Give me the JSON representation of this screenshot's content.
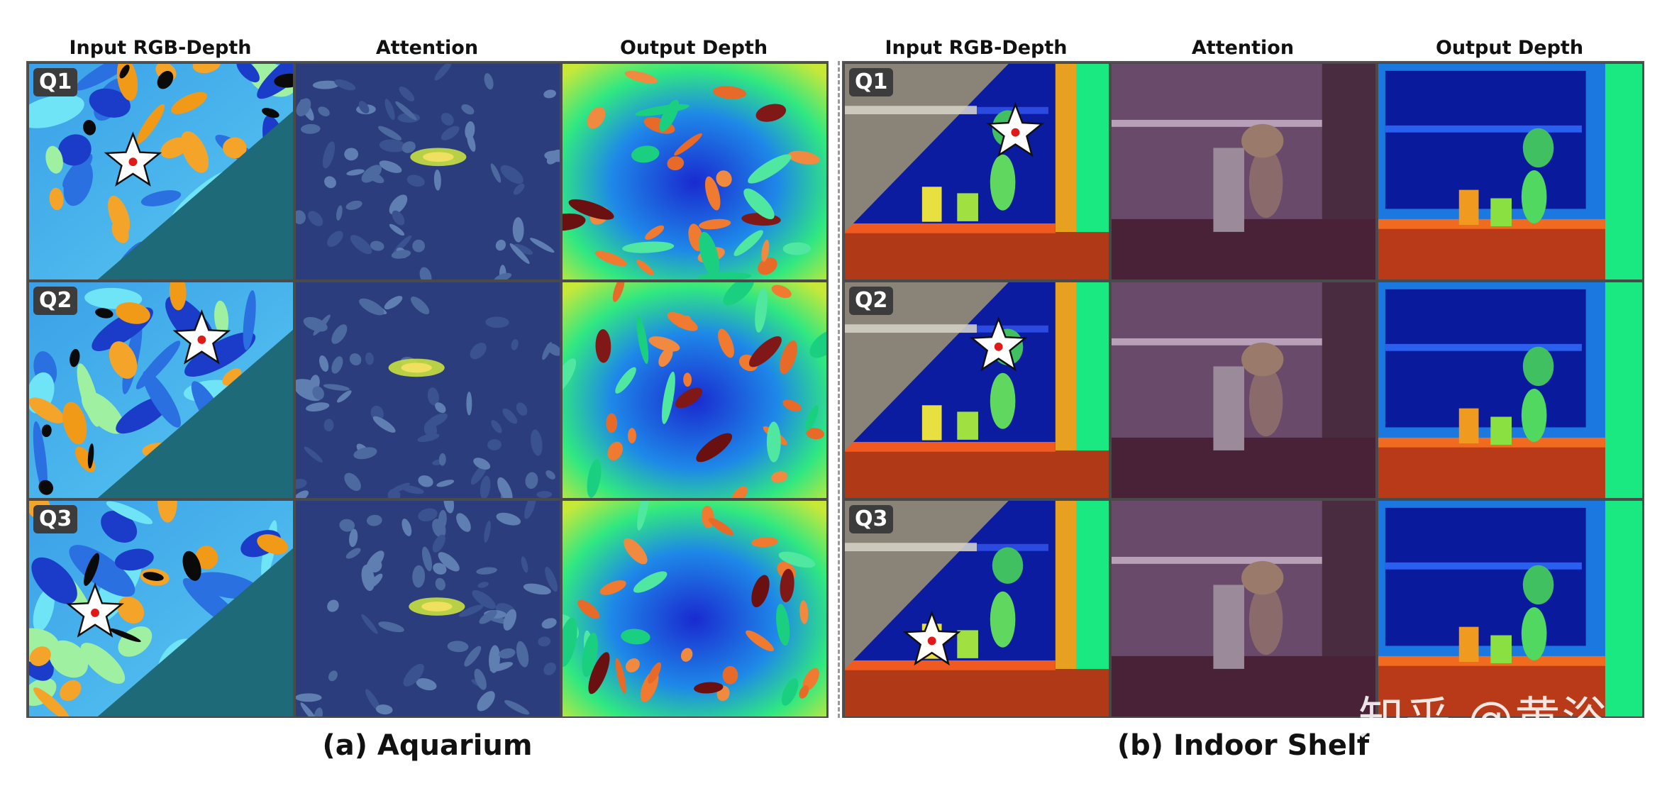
{
  "panels": {
    "a": {
      "headers": [
        "Input RGB-Depth",
        "Attention",
        "Output Depth"
      ],
      "caption": "(a) Aquarium"
    },
    "b": {
      "headers": [
        "Input RGB-Depth",
        "Attention",
        "Output Depth"
      ],
      "caption": "(b) Indoor Shelf"
    }
  },
  "queries": [
    "Q1",
    "Q2",
    "Q3"
  ],
  "watermark": "知乎 @黄浴",
  "colors": {
    "depth_cool": "#1230c8",
    "depth_mid": "#19e07a",
    "depth_warm": "#f08a20",
    "query_star_fill": "#ffffff",
    "query_dot": "#e01818",
    "aquarium_attention_tint": "#2a3a7a",
    "shelf_attention_tint": "#6a3a6a"
  }
}
